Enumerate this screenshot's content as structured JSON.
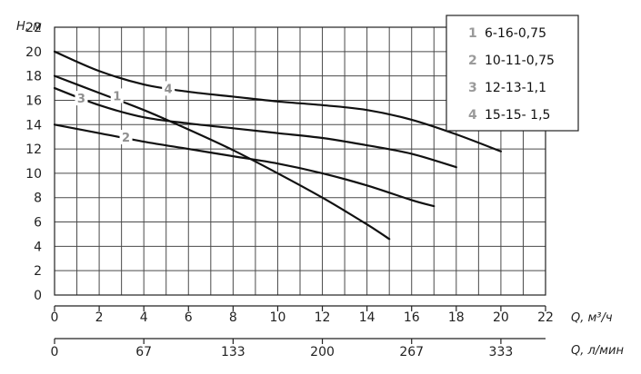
{
  "chart_data": {
    "type": "line",
    "ylabel": "H, м",
    "xlabel": "Q, м³/ч",
    "x2label": "Q, л/мин",
    "xlim": [
      0,
      22
    ],
    "ylim": [
      0,
      22
    ],
    "x_ticks": [
      0,
      2,
      4,
      6,
      8,
      10,
      12,
      14,
      16,
      18,
      20,
      22
    ],
    "y_ticks": [
      0,
      2,
      4,
      6,
      8,
      10,
      12,
      14,
      16,
      18,
      20,
      22
    ],
    "x2_ticks": [
      {
        "at": 0,
        "label": "0"
      },
      {
        "at": 4,
        "label": "67"
      },
      {
        "at": 8,
        "label": "133"
      },
      {
        "at": 12,
        "label": "200"
      },
      {
        "at": 16,
        "label": "267"
      },
      {
        "at": 20,
        "label": "333"
      }
    ],
    "grid": true,
    "legend_position": "top-right",
    "series": [
      {
        "id": "1",
        "name": "6-16-0,75",
        "x": [
          0,
          2,
          4,
          6,
          8,
          10,
          12,
          14,
          15
        ],
        "y": [
          18,
          16.6,
          15.2,
          13.6,
          11.9,
          10.0,
          8.0,
          5.8,
          4.6
        ]
      },
      {
        "id": "2",
        "name": "10-11-0,75",
        "x": [
          0,
          2,
          4,
          6,
          8,
          10,
          12,
          14,
          16,
          17
        ],
        "y": [
          14,
          13.3,
          12.6,
          12.0,
          11.4,
          10.8,
          10.0,
          9.0,
          7.8,
          7.3
        ]
      },
      {
        "id": "3",
        "name": "12-13-1,1",
        "x": [
          0,
          2,
          4,
          6,
          8,
          10,
          12,
          14,
          16,
          18
        ],
        "y": [
          17,
          15.6,
          14.6,
          14.1,
          13.7,
          13.3,
          12.9,
          12.3,
          11.6,
          10.5
        ]
      },
      {
        "id": "4",
        "name": "15-15- 1,5",
        "x": [
          0,
          2,
          4,
          6,
          8,
          10,
          12,
          14,
          16,
          18,
          20
        ],
        "y": [
          20,
          18.4,
          17.3,
          16.7,
          16.3,
          15.9,
          15.6,
          15.2,
          14.4,
          13.2,
          11.8
        ]
      }
    ],
    "curve_labels": [
      {
        "text": "1",
        "x": 2.8,
        "y": 16.3
      },
      {
        "text": "2",
        "x": 3.2,
        "y": 12.9
      },
      {
        "text": "3",
        "x": 1.2,
        "y": 16.1
      },
      {
        "text": "4",
        "x": 5.1,
        "y": 16.9
      }
    ]
  }
}
